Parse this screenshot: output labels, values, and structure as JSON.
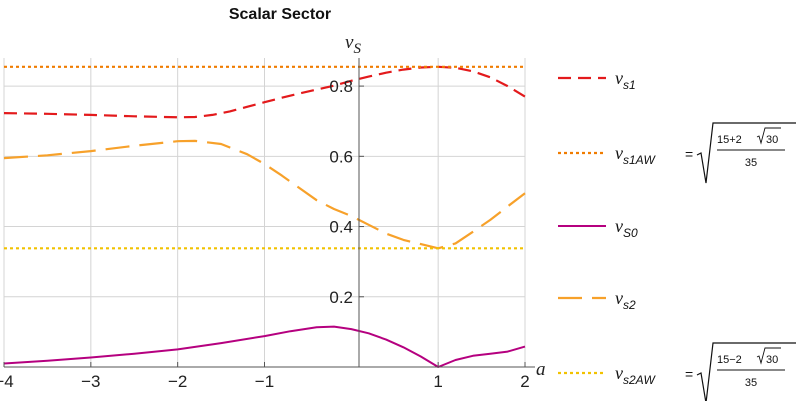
{
  "chart_data": {
    "type": "line",
    "title": "Scalar Sector",
    "xlabel": "a",
    "ylabel": "v_S",
    "xlim": [
      -4,
      2
    ],
    "ylim": [
      0,
      0.88
    ],
    "grid": true,
    "x_ticks": [
      {
        "v": -4,
        "label": "−4"
      },
      {
        "v": -3,
        "label": "−3"
      },
      {
        "v": -2,
        "label": "−2"
      },
      {
        "v": -1,
        "label": "−1"
      },
      {
        "v": 1,
        "label": "1"
      },
      {
        "v": 2,
        "label": "2"
      }
    ],
    "y_ticks": [
      {
        "v": 0.2,
        "label": "0.2"
      },
      {
        "v": 0.4,
        "label": "0.4"
      },
      {
        "v": 0.6,
        "label": "0.6"
      },
      {
        "v": 0.8,
        "label": "0.8"
      }
    ],
    "legend_position": "right",
    "series": [
      {
        "key": "vs1",
        "name_main": "v",
        "name_sub": "s1",
        "color": "#e31a1c",
        "dash": "13,7",
        "width": 2.2,
        "x": [
          -4,
          -3.5,
          -3,
          -2.5,
          -2,
          -1.8,
          -1.6,
          -1.4,
          -1.2,
          -1,
          -0.8,
          -0.6,
          -0.4,
          -0.2,
          0,
          0.2,
          0.4,
          0.6,
          0.8,
          1,
          1.2,
          1.4,
          1.6,
          1.8,
          2
        ],
        "y": [
          0.723,
          0.721,
          0.718,
          0.714,
          0.711,
          0.712,
          0.718,
          0.728,
          0.741,
          0.754,
          0.767,
          0.779,
          0.79,
          0.801,
          0.815,
          0.827,
          0.838,
          0.847,
          0.853,
          0.855,
          0.852,
          0.842,
          0.825,
          0.8,
          0.77
        ]
      },
      {
        "key": "vs1aw",
        "name_main": "v",
        "name_sub": "s1AW",
        "formula": {
          "sign": "+",
          "num_a": "15",
          "num_b": "2",
          "rad": "30",
          "den": "35"
        },
        "color": "#f07c00",
        "dash": "3,3",
        "width": 2.2,
        "x": [
          -4,
          2
        ],
        "y": [
          0.855,
          0.855
        ]
      },
      {
        "key": "vs0",
        "name_main": "v",
        "name_sub": "S0",
        "color": "#b5007f",
        "dash": "",
        "width": 2.0,
        "x": [
          -4,
          -3.5,
          -3,
          -2.5,
          -2,
          -1.5,
          -1,
          -0.7,
          -0.4,
          -0.2,
          0,
          0.2,
          0.4,
          0.6,
          0.8,
          1,
          1.2,
          1.4,
          1.6,
          1.8,
          2
        ],
        "y": [
          0.01,
          0.018,
          0.027,
          0.038,
          0.05,
          0.068,
          0.088,
          0.102,
          0.113,
          0.115,
          0.108,
          0.096,
          0.078,
          0.056,
          0.03,
          0.0,
          0.02,
          0.032,
          0.038,
          0.044,
          0.058
        ]
      },
      {
        "key": "vs2",
        "name_main": "v",
        "name_sub": "s2",
        "color": "#f7a12a",
        "dash": "24,10",
        "width": 2.2,
        "x": [
          -4,
          -3.5,
          -3,
          -2.5,
          -2,
          -1.8,
          -1.5,
          -1.2,
          -1,
          -0.8,
          -0.6,
          -0.4,
          -0.2,
          0,
          0.2,
          0.4,
          0.6,
          0.8,
          1,
          1.2,
          1.4,
          1.6,
          1.8,
          2
        ],
        "y": [
          0.595,
          0.603,
          0.615,
          0.63,
          0.643,
          0.644,
          0.635,
          0.606,
          0.578,
          0.545,
          0.51,
          0.475,
          0.45,
          0.43,
          0.405,
          0.38,
          0.362,
          0.35,
          0.338,
          0.352,
          0.385,
          0.419,
          0.457,
          0.495
        ]
      },
      {
        "key": "vs2aw",
        "name_main": "v",
        "name_sub": "s2AW",
        "formula": {
          "sign": "−",
          "num_a": "15",
          "num_b": "2",
          "rad": "30",
          "den": "35"
        },
        "color": "#f2c200",
        "dash": "3,3",
        "width": 2.2,
        "x": [
          -4,
          2
        ],
        "y": [
          0.338,
          0.338
        ]
      }
    ]
  }
}
